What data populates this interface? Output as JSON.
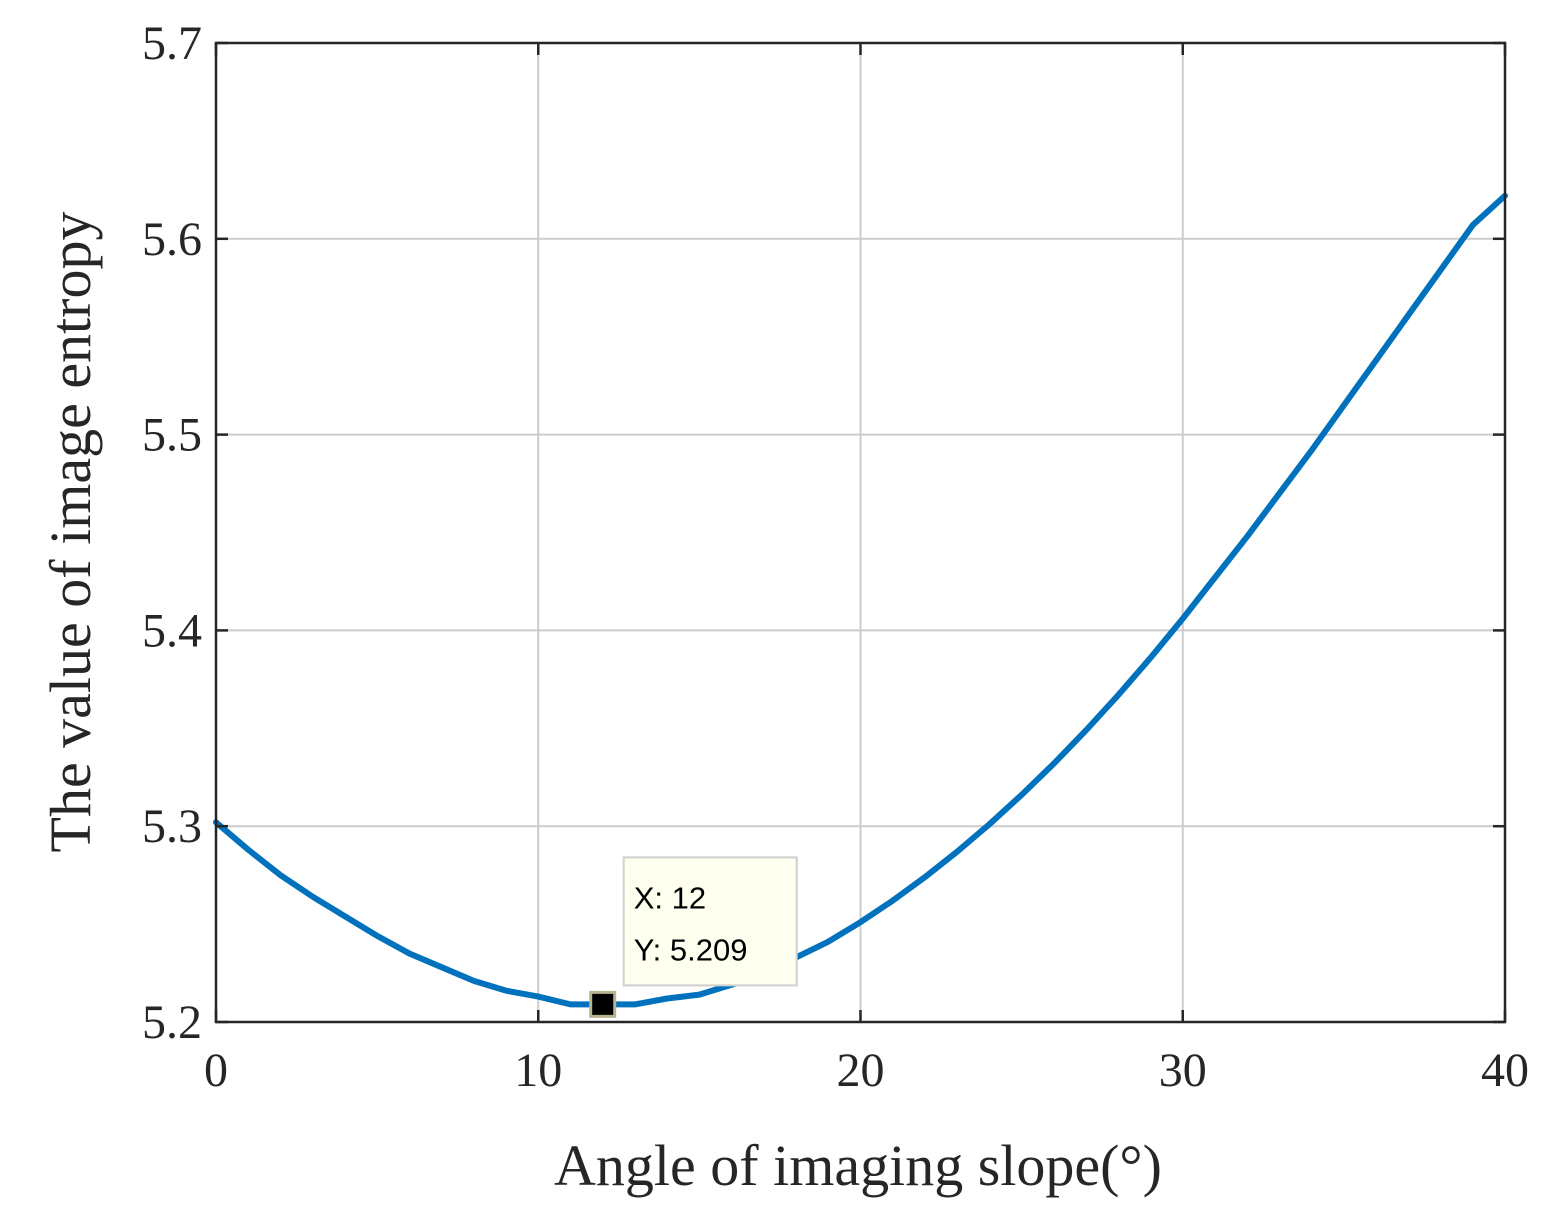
{
  "chart_data": {
    "type": "line",
    "title": "",
    "xlabel": "Angle of imaging slope(°)",
    "ylabel": "The value of image entropy",
    "xlim": [
      0,
      40
    ],
    "ylim": [
      5.2,
      5.7
    ],
    "xticks": [
      "0",
      "10",
      "20",
      "30",
      "40"
    ],
    "yticks": [
      "5.2",
      "5.3",
      "5.4",
      "5.5",
      "5.6",
      "5.7"
    ],
    "grid": true,
    "series": [
      {
        "color": "#0072BD",
        "x": [
          0,
          1,
          2,
          3,
          4,
          5,
          6,
          7,
          8,
          9,
          10,
          11,
          12,
          13,
          14,
          15,
          16,
          17,
          18,
          19,
          20,
          21,
          22,
          23,
          24,
          25,
          26,
          27,
          28,
          29,
          30,
          31,
          32,
          33,
          34,
          35,
          36,
          37,
          38,
          39,
          40
        ],
        "y": [
          5.302,
          5.288,
          5.275,
          5.264,
          5.254,
          5.244,
          5.235,
          5.228,
          5.221,
          5.216,
          5.213,
          5.209,
          5.209,
          5.209,
          5.212,
          5.214,
          5.219,
          5.225,
          5.233,
          5.241,
          5.251,
          5.262,
          5.274,
          5.287,
          5.301,
          5.316,
          5.332,
          5.349,
          5.367,
          5.386,
          5.406,
          5.427,
          5.448,
          5.47,
          5.492,
          5.515,
          5.538,
          5.561,
          5.584,
          5.607,
          5.622
        ]
      }
    ],
    "datatip": {
      "x": 12,
      "y": 5.209,
      "x_text": "X: 12",
      "y_text": "Y: 5.209"
    }
  }
}
